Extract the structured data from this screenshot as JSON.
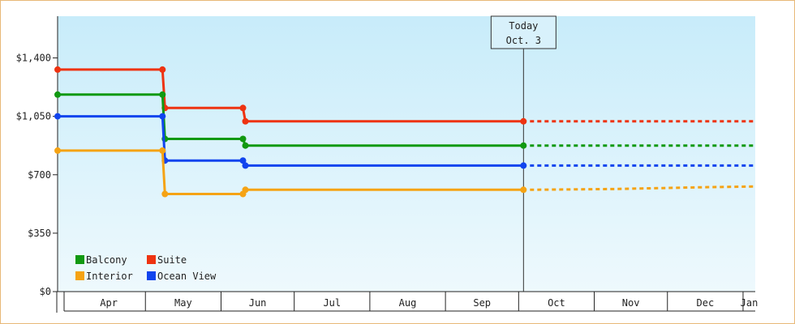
{
  "chart_data": {
    "type": "line",
    "step": true,
    "title": "",
    "xlabel": "",
    "ylabel": "",
    "ylim": [
      0,
      1650
    ],
    "y_ticks": [
      {
        "value": 0,
        "label": "$0"
      },
      {
        "value": 350,
        "label": "$350"
      },
      {
        "value": 700,
        "label": "$700"
      },
      {
        "value": 1050,
        "label": "$1,050"
      },
      {
        "value": 1400,
        "label": "$1,400"
      }
    ],
    "x_range": [
      "2025-03-26",
      "2026-01-06"
    ],
    "months": [
      {
        "label": "Apr",
        "start": "2025-04-01"
      },
      {
        "label": "May",
        "start": "2025-05-01"
      },
      {
        "label": "Jun",
        "start": "2025-06-01"
      },
      {
        "label": "Jul",
        "start": "2025-07-01"
      },
      {
        "label": "Aug",
        "start": "2025-08-01"
      },
      {
        "label": "Sep",
        "start": "2025-09-01"
      },
      {
        "label": "Oct",
        "start": "2025-10-01"
      },
      {
        "label": "Nov",
        "start": "2025-11-01"
      },
      {
        "label": "Dec",
        "start": "2025-12-01"
      },
      {
        "label": "Jan",
        "start": "2026-01-01"
      }
    ],
    "today": {
      "line1": "Today",
      "line2": "Oct. 3",
      "date": "2025-10-03"
    },
    "grid": false,
    "legend_position": "bottom-left",
    "series": [
      {
        "name": "Suite",
        "color": "#ee3311",
        "points": [
          {
            "date": "2025-03-26",
            "value": 1330
          },
          {
            "date": "2025-05-08",
            "value": 1330
          },
          {
            "date": "2025-05-09",
            "value": 1100
          },
          {
            "date": "2025-06-10",
            "value": 1100
          },
          {
            "date": "2025-06-11",
            "value": 1020
          },
          {
            "date": "2025-10-03",
            "value": 1020
          }
        ],
        "projection": [
          {
            "date": "2025-10-03",
            "value": 1020
          },
          {
            "date": "2026-01-06",
            "value": 1020
          }
        ]
      },
      {
        "name": "Balcony",
        "color": "#119911",
        "points": [
          {
            "date": "2025-03-26",
            "value": 1180
          },
          {
            "date": "2025-05-08",
            "value": 1180
          },
          {
            "date": "2025-05-09",
            "value": 915
          },
          {
            "date": "2025-06-10",
            "value": 915
          },
          {
            "date": "2025-06-11",
            "value": 875
          },
          {
            "date": "2025-10-03",
            "value": 875
          }
        ],
        "projection": [
          {
            "date": "2025-10-03",
            "value": 875
          },
          {
            "date": "2026-01-06",
            "value": 875
          }
        ]
      },
      {
        "name": "Ocean View",
        "color": "#1144ee",
        "points": [
          {
            "date": "2025-03-26",
            "value": 1050
          },
          {
            "date": "2025-05-08",
            "value": 1050
          },
          {
            "date": "2025-05-09",
            "value": 785
          },
          {
            "date": "2025-06-10",
            "value": 785
          },
          {
            "date": "2025-06-11",
            "value": 755
          },
          {
            "date": "2025-10-03",
            "value": 755
          }
        ],
        "projection": [
          {
            "date": "2025-10-03",
            "value": 755
          },
          {
            "date": "2026-01-06",
            "value": 755
          }
        ]
      },
      {
        "name": "Interior",
        "color": "#f5a314",
        "points": [
          {
            "date": "2025-03-26",
            "value": 845
          },
          {
            "date": "2025-05-08",
            "value": 845
          },
          {
            "date": "2025-05-09",
            "value": 585
          },
          {
            "date": "2025-06-10",
            "value": 585
          },
          {
            "date": "2025-06-11",
            "value": 610
          },
          {
            "date": "2025-10-03",
            "value": 610
          }
        ],
        "projection": [
          {
            "date": "2025-10-03",
            "value": 610
          },
          {
            "date": "2025-11-10",
            "value": 615
          },
          {
            "date": "2025-12-15",
            "value": 625
          },
          {
            "date": "2026-01-06",
            "value": 630
          }
        ]
      }
    ],
    "legend": [
      {
        "name": "Balcony",
        "color": "#119911"
      },
      {
        "name": "Suite",
        "color": "#ee3311"
      },
      {
        "name": "Interior",
        "color": "#f5a314"
      },
      {
        "name": "Ocean View",
        "color": "#1144ee"
      }
    ]
  }
}
